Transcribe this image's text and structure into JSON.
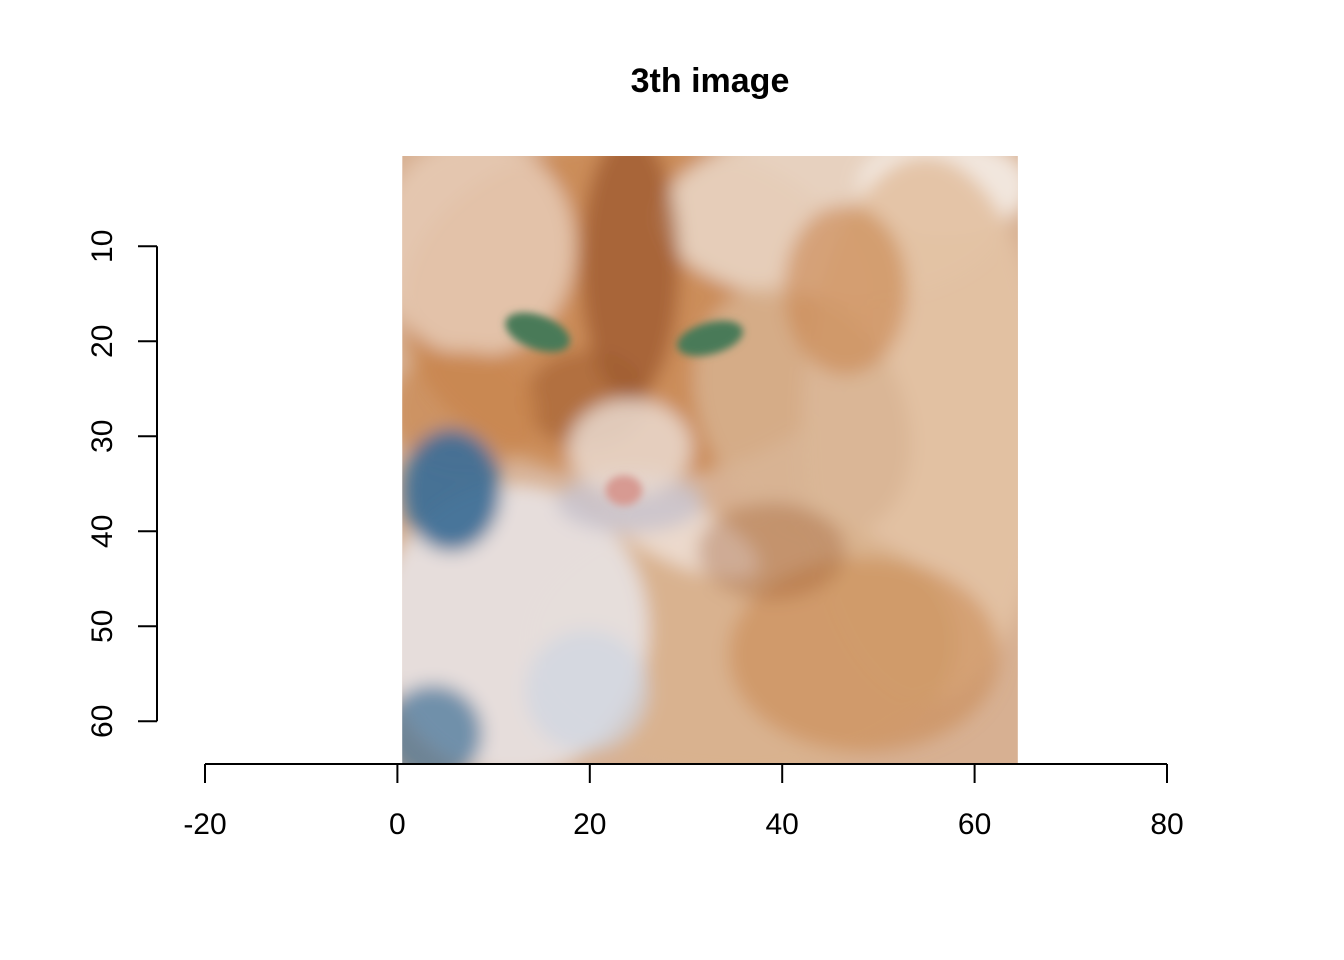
{
  "chart_data": {
    "type": "image",
    "title": "3th image",
    "xlabel": "",
    "ylabel": "",
    "x_ticks": [
      -20,
      0,
      20,
      40,
      60,
      80
    ],
    "y_ticks": [
      10,
      20,
      30,
      40,
      50,
      60
    ],
    "x_tick_labels": [
      "-20",
      "0",
      "20",
      "40",
      "60",
      "80"
    ],
    "y_tick_labels": [
      "10",
      "20",
      "30",
      "40",
      "50",
      "60"
    ],
    "xlim": [
      -20,
      80
    ],
    "ylim": [
      64,
      1
    ],
    "y_reversed": true,
    "image": {
      "subject": "orange tabby cat",
      "x_range": [
        1,
        64
      ],
      "y_range": [
        1,
        64
      ],
      "resolution": "64x64 pixels",
      "colors": {
        "fur_light": "#e8c8a8",
        "fur_orange": "#c9864f",
        "fur_dark": "#9c5a2e",
        "eye": "#4a7a58",
        "nose": "#d79a92",
        "background_blue": "#3f6f96",
        "highlight": "#f4ece6"
      }
    },
    "grid": false,
    "legend": "none"
  }
}
